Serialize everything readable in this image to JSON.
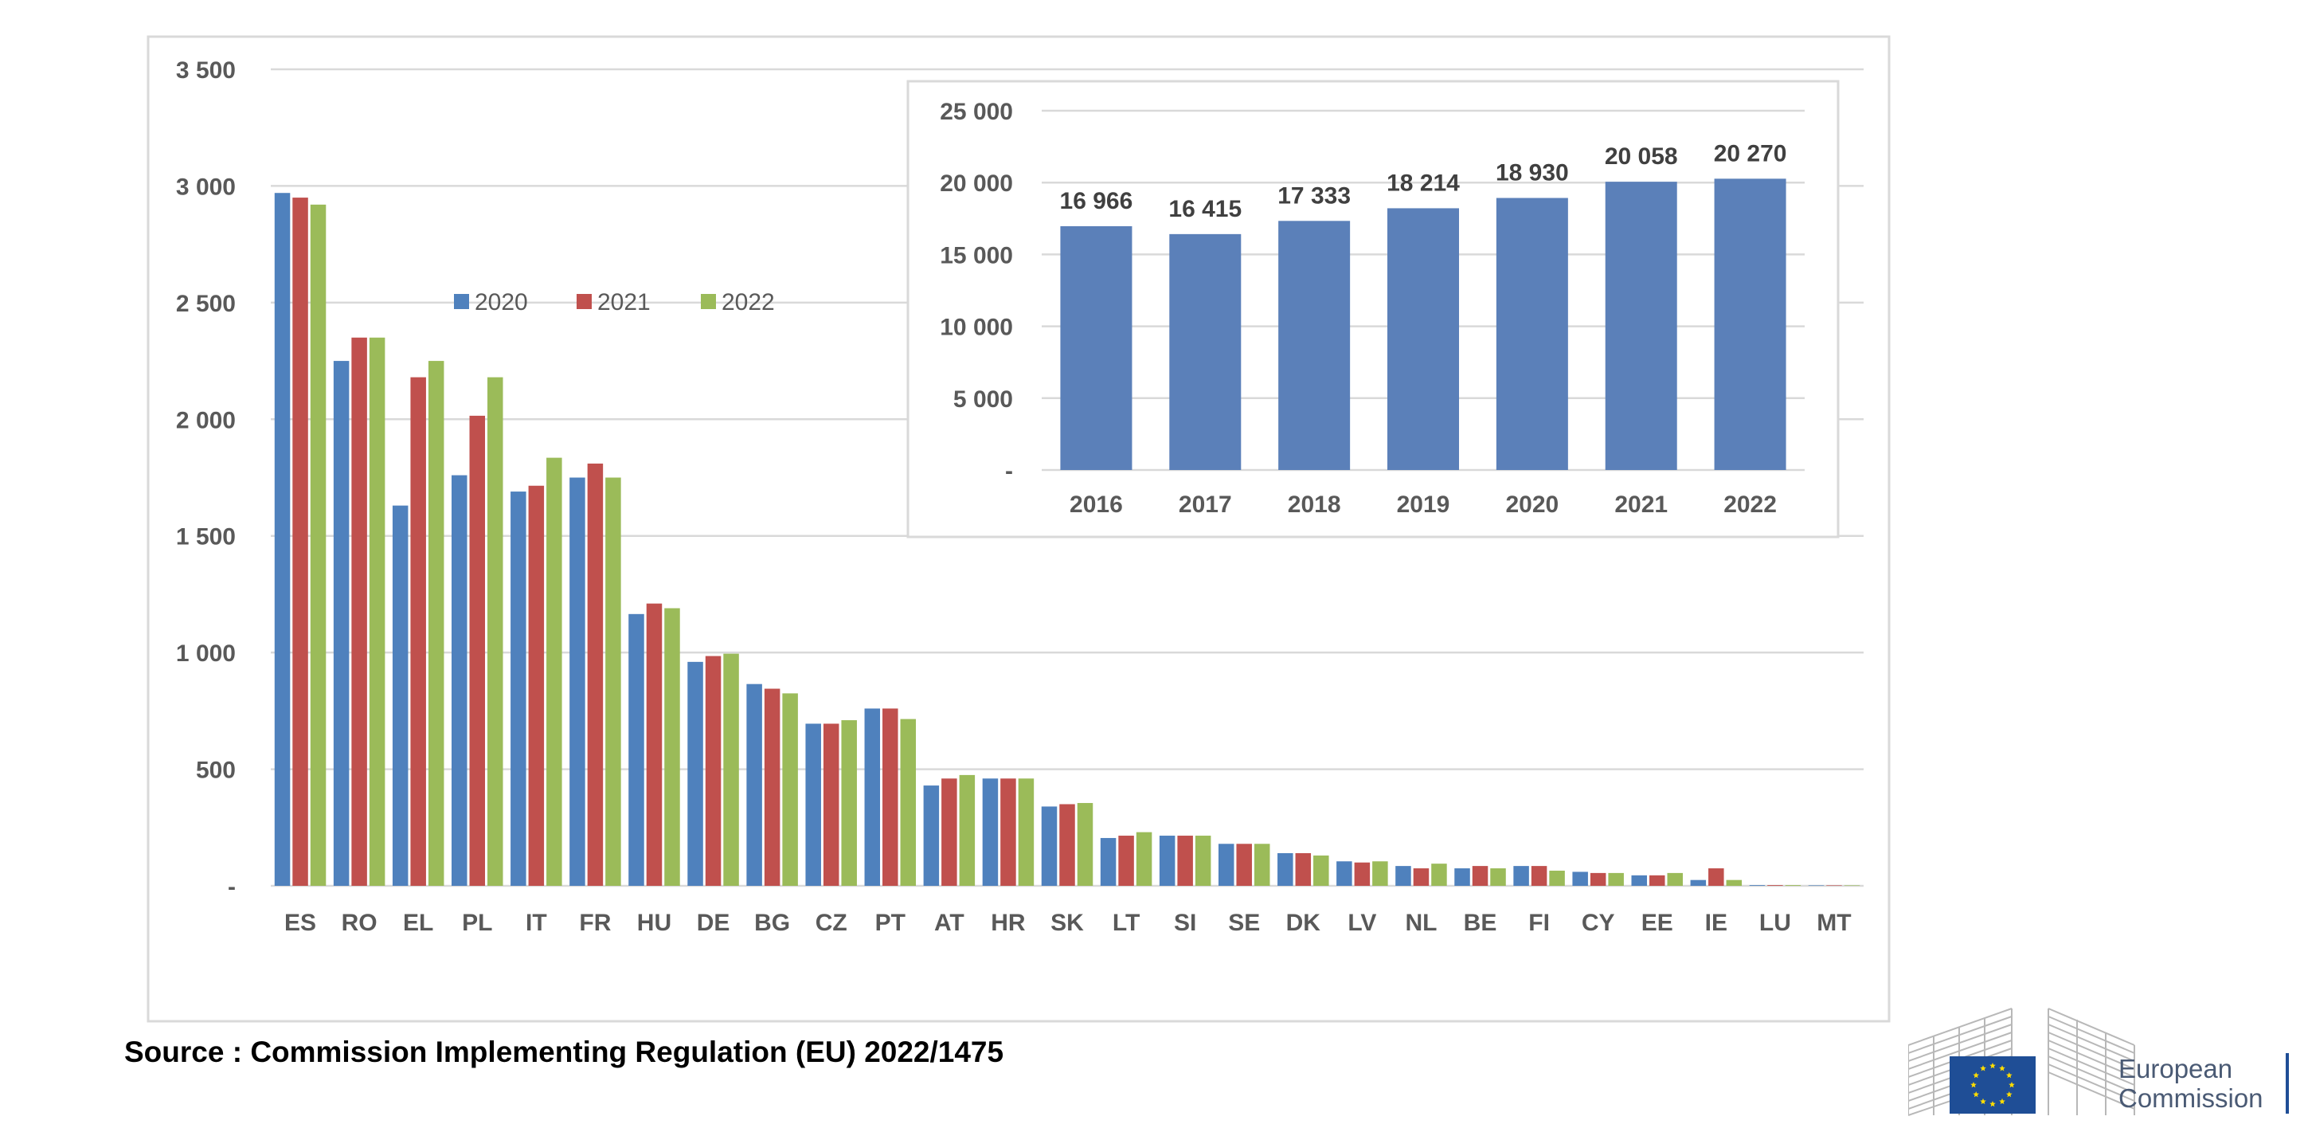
{
  "chart_data": [
    {
      "type": "bar",
      "title": "",
      "xlabel": "",
      "ylabel": "",
      "ylim": [
        0,
        3500
      ],
      "yticks": [
        "-",
        "500",
        "1 000",
        "1 500",
        "2 000",
        "2 500",
        "3 000",
        "3 500"
      ],
      "ytick_values": [
        0,
        500,
        1000,
        1500,
        2000,
        2500,
        3000,
        3500
      ],
      "grid": true,
      "legend": "top-left",
      "categories": [
        "ES",
        "RO",
        "EL",
        "PL",
        "IT",
        "FR",
        "HU",
        "DE",
        "BG",
        "CZ",
        "PT",
        "AT",
        "HR",
        "SK",
        "LT",
        "SI",
        "SE",
        "DK",
        "LV",
        "NL",
        "BE",
        "FI",
        "CY",
        "EE",
        "IE",
        "LU",
        "MT"
      ],
      "series": [
        {
          "name": "2020",
          "color": "#4f81bd",
          "values": [
            2970,
            2250,
            1630,
            1760,
            1690,
            1750,
            1165,
            960,
            865,
            695,
            760,
            430,
            460,
            340,
            205,
            215,
            180,
            140,
            105,
            85,
            75,
            85,
            60,
            45,
            25,
            3,
            2
          ]
        },
        {
          "name": "2021",
          "color": "#c0504d",
          "values": [
            2950,
            2350,
            2180,
            2015,
            1715,
            1810,
            1210,
            985,
            845,
            695,
            760,
            460,
            460,
            350,
            215,
            215,
            180,
            140,
            100,
            75,
            85,
            85,
            55,
            45,
            75,
            3,
            2
          ]
        },
        {
          "name": "2022",
          "color": "#9bbb59",
          "values": [
            2920,
            2350,
            2250,
            2180,
            1835,
            1750,
            1190,
            995,
            825,
            710,
            715,
            475,
            460,
            355,
            230,
            215,
            180,
            130,
            105,
            95,
            75,
            65,
            55,
            55,
            25,
            3,
            2
          ]
        }
      ]
    },
    {
      "type": "bar",
      "title": "",
      "xlabel": "",
      "ylabel": "",
      "ylim": [
        0,
        25000
      ],
      "yticks": [
        "-",
        "5 000",
        "10 000",
        "15 000",
        "20 000",
        "25 000"
      ],
      "ytick_values": [
        0,
        5000,
        10000,
        15000,
        20000,
        25000
      ],
      "grid": true,
      "categories": [
        "2016",
        "2017",
        "2018",
        "2019",
        "2020",
        "2021",
        "2022"
      ],
      "color": "#5b80b9",
      "values": [
        16966,
        16415,
        17333,
        18214,
        18930,
        20058,
        20270
      ],
      "data_labels": [
        "16 966",
        "16 415",
        "17 333",
        "18 214",
        "18 930",
        "20 058",
        "20 270"
      ]
    }
  ],
  "source_note": "Source : Commission Implementing Regulation (EU) 2022/1475",
  "logo": {
    "line1": "European",
    "line2": "Commission",
    "flag_color": "#1f4e96",
    "star_color": "#ffdd00"
  }
}
